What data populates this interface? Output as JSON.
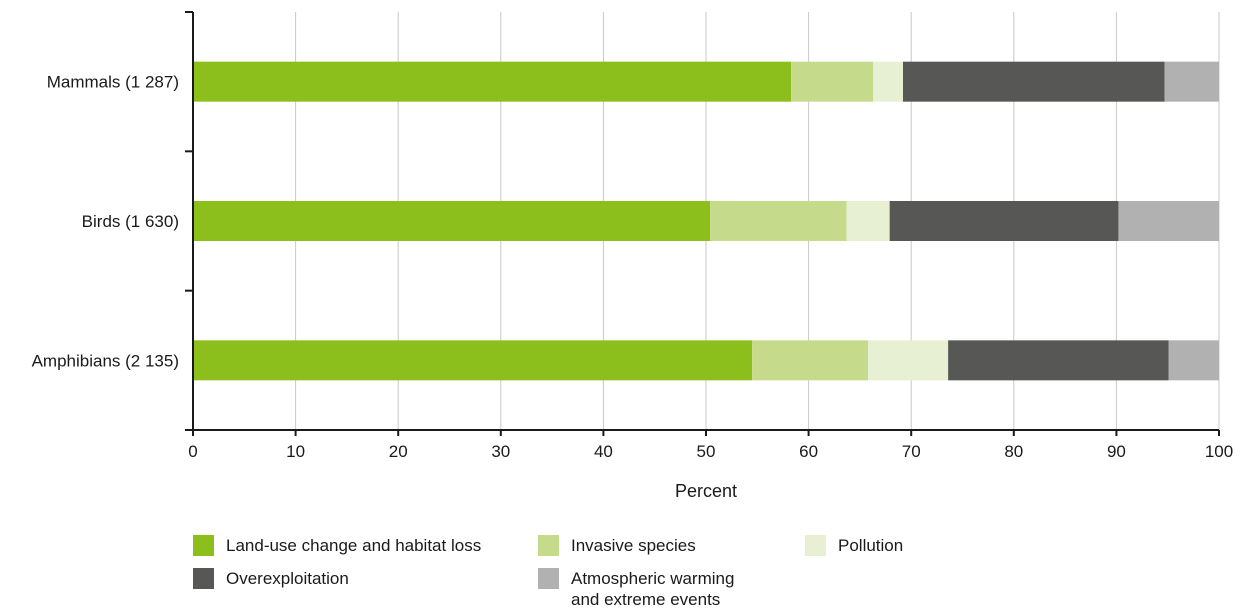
{
  "chart_data": {
    "type": "bar",
    "orientation": "horizontal",
    "stacked": true,
    "categories": [
      "Mammals (1 287)",
      "Birds (1 630)",
      "Amphibians (2 135)"
    ],
    "series": [
      {
        "name": "Land-use change and habitat loss",
        "color": "#8dbf1c",
        "values": [
          58.3,
          50.4,
          54.5
        ]
      },
      {
        "name": "Invasive species",
        "color": "#c6da8b",
        "values": [
          8.0,
          13.3,
          11.3
        ]
      },
      {
        "name": "Pollution",
        "color": "#e7f0d3",
        "values": [
          2.9,
          4.2,
          7.8
        ]
      },
      {
        "name": "Overexploitation",
        "color": "#575756",
        "values": [
          25.5,
          22.3,
          21.5
        ]
      },
      {
        "name": "Atmospheric warming\nand extreme events",
        "color": "#b1b1b1",
        "values": [
          5.3,
          9.8,
          4.9
        ]
      }
    ],
    "xlabel": "Percent",
    "xlim": [
      0,
      100
    ],
    "xticks": [
      0,
      10,
      20,
      30,
      40,
      50,
      60,
      70,
      80,
      90,
      100
    ],
    "grid": "vertical",
    "legend_position": "bottom"
  }
}
